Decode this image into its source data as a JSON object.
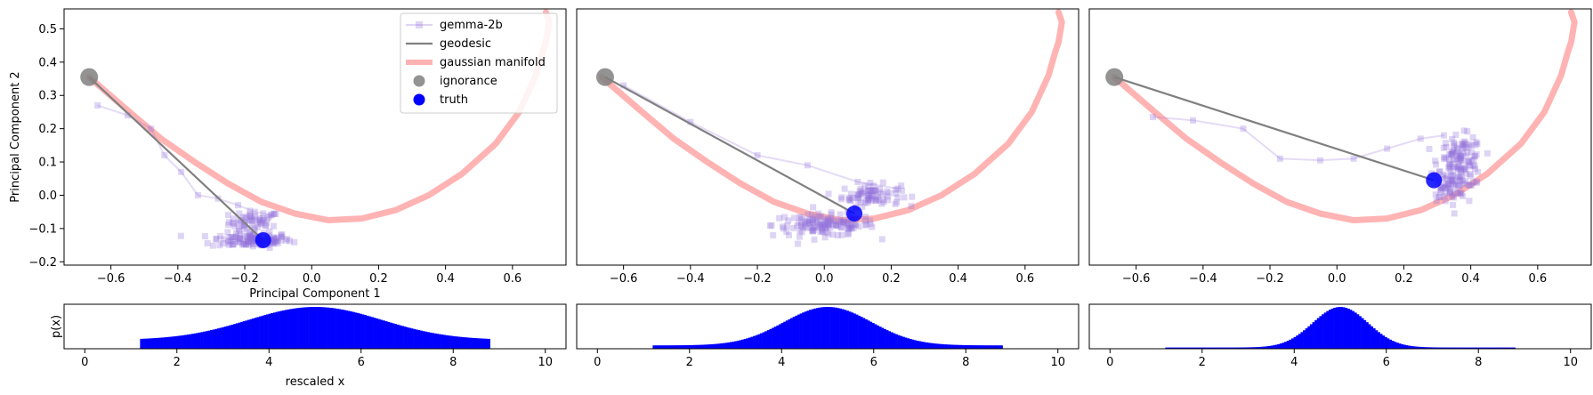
{
  "chart_data": [
    {
      "type": "scatter",
      "panel": "top-left",
      "xlabel": "Principal Component 1",
      "ylabel": "Principal Component 2",
      "xlim": [
        -0.74,
        0.76
      ],
      "ylim": [
        -0.21,
        0.56
      ],
      "xticks": [
        -0.6,
        -0.4,
        -0.2,
        0.0,
        0.2,
        0.4,
        0.6
      ],
      "xtick_labels": [
        "−0.6",
        "−0.4",
        "−0.2",
        "0.0",
        "0.2",
        "0.4",
        "0.6"
      ],
      "yticks": [
        -0.2,
        -0.1,
        0.0,
        0.1,
        0.2,
        0.3,
        0.4,
        0.5
      ],
      "ytick_labels": [
        "−0.2",
        "−0.1",
        "0.0",
        "0.1",
        "0.2",
        "0.3",
        "0.4",
        "0.5"
      ],
      "legend": {
        "placement": "top-right",
        "entries": [
          "gemma-2b",
          "geodesic",
          "gaussian manifold",
          "ignorance",
          "truth"
        ]
      },
      "ignorance": [
        -0.665,
        0.355
      ],
      "truth": [
        -0.145,
        -0.135
      ],
      "trajectory_path": [
        [
          -0.64,
          0.27
        ],
        [
          -0.55,
          0.24
        ],
        [
          -0.48,
          0.2
        ],
        [
          -0.44,
          0.12
        ],
        [
          -0.39,
          0.07
        ],
        [
          -0.34,
          0.0
        ],
        [
          -0.28,
          -0.01
        ],
        [
          -0.22,
          -0.03
        ],
        [
          -0.17,
          -0.05
        ],
        [
          -0.12,
          -0.06
        ]
      ],
      "clusters": [
        {
          "center": [
            -0.17,
            -0.08
          ],
          "radius": [
            0.07,
            0.03
          ],
          "n": 60
        },
        {
          "center": [
            -0.18,
            -0.135
          ],
          "radius": [
            0.11,
            0.02
          ],
          "n": 120
        }
      ]
    },
    {
      "type": "scatter",
      "panel": "top-middle",
      "xlim": [
        -0.74,
        0.76
      ],
      "ylim": [
        -0.21,
        0.56
      ],
      "xticks": [
        -0.6,
        -0.4,
        -0.2,
        0.0,
        0.2,
        0.4,
        0.6
      ],
      "xtick_labels": [
        "−0.6",
        "−0.4",
        "−0.2",
        "0.0",
        "0.2",
        "0.4",
        "0.6"
      ],
      "ignorance": [
        -0.655,
        0.355
      ],
      "truth": [
        0.09,
        -0.055
      ],
      "trajectory_path": [
        [
          -0.6,
          0.33
        ],
        [
          -0.4,
          0.22
        ],
        [
          -0.2,
          0.12
        ],
        [
          -0.05,
          0.09
        ],
        [
          0.1,
          0.04
        ],
        [
          0.22,
          0.02
        ]
      ],
      "clusters": [
        {
          "center": [
            0.14,
            0.0
          ],
          "radius": [
            0.08,
            0.03
          ],
          "n": 80
        },
        {
          "center": [
            0.0,
            -0.09
          ],
          "radius": [
            0.14,
            0.03
          ],
          "n": 140
        }
      ]
    },
    {
      "type": "scatter",
      "panel": "top-right",
      "xlim": [
        -0.74,
        0.76
      ],
      "ylim": [
        -0.21,
        0.56
      ],
      "xticks": [
        -0.6,
        -0.4,
        -0.2,
        0.0,
        0.2,
        0.4,
        0.6
      ],
      "xtick_labels": [
        "−0.6",
        "−0.4",
        "−0.2",
        "0.0",
        "0.2",
        "0.4",
        "0.6"
      ],
      "ignorance": [
        -0.665,
        0.355
      ],
      "truth": [
        0.29,
        0.045
      ],
      "trajectory_path": [
        [
          -0.55,
          0.235
        ],
        [
          -0.43,
          0.225
        ],
        [
          -0.28,
          0.2
        ],
        [
          -0.17,
          0.11
        ],
        [
          -0.05,
          0.105
        ],
        [
          0.05,
          0.11
        ],
        [
          0.15,
          0.14
        ],
        [
          0.25,
          0.17
        ],
        [
          0.32,
          0.18
        ]
      ],
      "clusters": [
        {
          "center": [
            0.37,
            0.1
          ],
          "radius": [
            0.06,
            0.07
          ],
          "n": 130
        },
        {
          "center": [
            0.33,
            0.02
          ],
          "radius": [
            0.05,
            0.04
          ],
          "n": 50
        }
      ]
    },
    {
      "type": "bar",
      "panel": "bottom-left",
      "xlabel": "rescaled x",
      "ylabel": "p(x)",
      "xlim": [
        -0.45,
        10.45
      ],
      "xticks": [
        0,
        2,
        4,
        6,
        8,
        10
      ],
      "xtick_labels": [
        "0",
        "2",
        "4",
        "6",
        "8",
        "10"
      ],
      "range": [
        1.2,
        8.8
      ],
      "mean": 5.0,
      "width": 1.45,
      "base_level": 0.21,
      "peak": 1.0
    },
    {
      "type": "bar",
      "panel": "bottom-middle",
      "xlim": [
        -0.45,
        10.45
      ],
      "xticks": [
        0,
        2,
        4,
        6,
        8,
        10
      ],
      "xtick_labels": [
        "0",
        "2",
        "4",
        "6",
        "8",
        "10"
      ],
      "range": [
        1.2,
        8.8
      ],
      "mean": 5.0,
      "width": 0.95,
      "base_level": 0.08,
      "peak": 1.0
    },
    {
      "type": "bar",
      "panel": "bottom-right",
      "xlim": [
        -0.45,
        10.45
      ],
      "xticks": [
        0,
        2,
        4,
        6,
        8,
        10
      ],
      "xtick_labels": [
        "0",
        "2",
        "4",
        "6",
        "8",
        "10"
      ],
      "range": [
        1.2,
        8.8
      ],
      "mean": 5.0,
      "width": 0.6,
      "base_level": 0.03,
      "peak": 1.0
    }
  ],
  "manifold": [
    [
      -0.665,
      0.355
    ],
    [
      -0.55,
      0.255
    ],
    [
      -0.45,
      0.17
    ],
    [
      -0.35,
      0.1
    ],
    [
      -0.25,
      0.035
    ],
    [
      -0.15,
      -0.02
    ],
    [
      -0.05,
      -0.055
    ],
    [
      0.05,
      -0.075
    ],
    [
      0.15,
      -0.07
    ],
    [
      0.25,
      -0.045
    ],
    [
      0.35,
      0.0
    ],
    [
      0.45,
      0.065
    ],
    [
      0.55,
      0.155
    ],
    [
      0.62,
      0.25
    ],
    [
      0.67,
      0.36
    ],
    [
      0.69,
      0.43
    ],
    [
      0.7,
      0.46
    ],
    [
      0.71,
      0.52
    ],
    [
      0.7,
      0.55
    ]
  ],
  "colors": {
    "manifold": "#ff9999",
    "geodesic": "#808080",
    "ignorance": "#808080",
    "truth": "#0000ff",
    "trajectory": "#9370db",
    "histogram": "#0000ff"
  }
}
